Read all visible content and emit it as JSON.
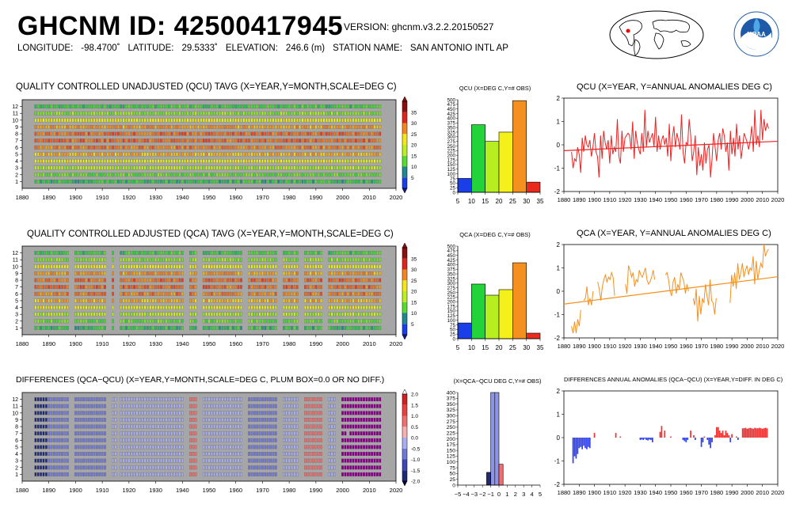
{
  "header": {
    "title": "GHCNM ID: 42500417945",
    "version": "VERSION: ghcnm.v3.2.2.20150527",
    "longitude_label": "LONGITUDE:",
    "longitude_value": "-98.4700˚",
    "latitude_label": "LATITUDE:",
    "latitude_value": "29.5333˚",
    "elevation_label": "ELEVATION:",
    "elevation_value": "246.6 (m)",
    "station_label": "STATION NAME:",
    "station_value": "SAN ANTONIO INTL AP"
  },
  "colors": {
    "raster_bg": "#a6a6a6",
    "qcu_line": "#ee2222",
    "qca_line": "#f5901e",
    "diff_pos": "#ee3333",
    "diff_neg": "#3344ee"
  },
  "panels": {
    "qcu_raster_title": "QUALITY CONTROLLED UNADJUSTED (QCU) TAVG (X=YEAR,Y=MONTH,SCALE=DEG C)",
    "qca_raster_title": "QUALITY CONTROLLED ADJUSTED (QCA) TAVG (X=YEAR,Y=MONTH,SCALE=DEG C)",
    "diff_raster_title": "DIFFERENCES (QCA−QCU) (X=YEAR,Y=MONTH,SCALE=DEG C, PLUM BOX=0.0 OR NO DIFF.)",
    "qcu_hist_title": "QCU (X=DEG C,Y=# OBS)",
    "qca_hist_title": "QCA (X=DEG C,Y=# OBS)",
    "diff_hist_title": "(X=QCA−QCU DEG C,Y=# OBS)",
    "qcu_anom_title": "QCU (X=YEAR, Y=ANNUAL ANOMALIES DEG C)",
    "qca_anom_title": "QCA (X=YEAR, Y=ANNUAL ANOMALIES DEG C)",
    "diff_anom_title": "DIFFERENCES ANNUAL ANOMALIES (QCA−QCU) (X=YEAR,Y=DIFF. IN DEG C)"
  },
  "chart_data": [
    {
      "id": "qcu_raster",
      "type": "heatmap",
      "xlim": [
        1880,
        2020
      ],
      "ylim": [
        0,
        13
      ],
      "x_ticks": [
        1880,
        1890,
        1900,
        1910,
        1920,
        1930,
        1940,
        1950,
        1960,
        1970,
        1980,
        1990,
        2000,
        2010,
        2020
      ],
      "y_ticks": [
        1,
        2,
        3,
        4,
        5,
        6,
        7,
        8,
        9,
        10,
        11,
        12
      ],
      "data_years": [
        1885,
        2014
      ],
      "gaps": [],
      "monthly_mean_degC": [
        10,
        13,
        17,
        21,
        25,
        28,
        29,
        29,
        26,
        21,
        15,
        11
      ],
      "colorbar_ticks": [
        5,
        10,
        15,
        20,
        25,
        30,
        35
      ]
    },
    {
      "id": "qcu_hist",
      "type": "bar",
      "categories": [
        "5-10",
        "10-15",
        "15-20",
        "20-25",
        "25-30",
        "30-35"
      ],
      "values": [
        75,
        365,
        275,
        325,
        495,
        55
      ],
      "xlim": [
        5,
        35
      ],
      "ylim": [
        0,
        500
      ],
      "x_ticks": [
        5,
        10,
        15,
        20,
        25,
        30,
        35
      ],
      "y_ticks": [
        0,
        25,
        50,
        75,
        100,
        125,
        150,
        175,
        200,
        225,
        250,
        275,
        300,
        325,
        350,
        375,
        400,
        425,
        450,
        475,
        500
      ],
      "bar_colors": [
        "#1a3ee8",
        "#22d43a",
        "#b6ee22",
        "#f3f01a",
        "#f5901e",
        "#ea2a1c"
      ]
    },
    {
      "id": "qcu_anom",
      "type": "line",
      "xlim": [
        1880,
        2020
      ],
      "ylim": [
        -2,
        2
      ],
      "x_ticks": [
        1880,
        1890,
        1900,
        1910,
        1920,
        1930,
        1940,
        1950,
        1960,
        1970,
        1980,
        1990,
        2000,
        2010,
        2020
      ],
      "y_ticks": [
        -2,
        -1,
        0,
        1,
        2
      ],
      "x_start": 1885,
      "values": [
        -0.3,
        -1.0,
        -0.6,
        -0.7,
        -0.1,
        -0.4,
        -1.2,
        0.3,
        -0.3,
        0.4,
        0.0,
        -0.1,
        0.2,
        -0.5,
        -0.1,
        0.5,
        -0.3,
        -0.5,
        -1.4,
        0.4,
        -0.6,
        0.6,
        0.1,
        -0.2,
        0.2,
        -0.8,
        0.4,
        -0.4,
        -0.1,
        -0.3,
        1.1,
        -0.5,
        -0.8,
        0.6,
        -0.3,
        0.3,
        0.4,
        0.5,
        0.4,
        -0.2,
        1.0,
        -0.6,
        0.6,
        0.1,
        -0.2,
        -0.4,
        0.5,
        -0.3,
        1.5,
        -0.1,
        0.6,
        0.1,
        0.3,
        0.5,
        -0.1,
        1.2,
        -0.3,
        0.4,
        -0.2,
        0.2,
        0.4,
        0.0,
        0.3,
        -0.5,
        0.9,
        -0.7,
        0.3,
        0.8,
        -0.1,
        0.5,
        0.2,
        -0.2,
        1.3,
        -0.3,
        -0.8,
        0.1,
        0.0,
        1.1,
        0.4,
        -0.7,
        -0.3,
        0.4,
        -1.3,
        -0.1,
        -0.9,
        -0.4,
        -1.1,
        0.1,
        -0.8,
        -0.2,
        0.0,
        -1.4,
        -0.6,
        0.5,
        -0.1,
        -0.7,
        0.2,
        0.5,
        -0.2,
        0.7,
        0.4,
        -0.3,
        0.1,
        -1.1,
        0.6,
        -0.4,
        0.3,
        -0.5,
        0.9,
        -0.2,
        0.4,
        -0.6,
        -0.1,
        0.5,
        0.3,
        0.1,
        -0.2,
        0.2,
        0.8,
        -0.3,
        1.5,
        0.0,
        0.4,
        -0.1,
        1.5,
        0.2,
        1.1,
        0.6,
        0.9,
        0.7
      ],
      "trend": [
        -0.25,
        0.15
      ]
    },
    {
      "id": "qca_raster",
      "type": "heatmap",
      "xlim": [
        1880,
        2020
      ],
      "ylim": [
        0,
        13
      ],
      "x_ticks": [
        1880,
        1890,
        1900,
        1910,
        1920,
        1930,
        1940,
        1950,
        1960,
        1970,
        1980,
        1990,
        2000,
        2010,
        2020
      ],
      "y_ticks": [
        1,
        2,
        3,
        4,
        5,
        6,
        7,
        8,
        9,
        10,
        11,
        12
      ],
      "data_years": [
        1885,
        2014
      ],
      "gaps": [
        [
          1898,
          1899
        ],
        [
          1912,
          1913
        ],
        [
          1915,
          1916
        ],
        [
          1941,
          1942
        ],
        [
          1946,
          1947
        ],
        [
          1963,
          1964
        ],
        [
          1976,
          1977
        ],
        [
          1984,
          1985
        ],
        [
          1993,
          1994
        ]
      ],
      "monthly_mean_degC": [
        10,
        13,
        17,
        21,
        25,
        28,
        29,
        29,
        26,
        21,
        15,
        11
      ],
      "colorbar_ticks": [
        5,
        10,
        15,
        20,
        25,
        30,
        35
      ]
    },
    {
      "id": "qca_hist",
      "type": "bar",
      "categories": [
        "5-10",
        "10-15",
        "15-20",
        "20-25",
        "25-30",
        "30-35"
      ],
      "values": [
        85,
        295,
        235,
        265,
        410,
        30
      ],
      "xlim": [
        5,
        35
      ],
      "ylim": [
        0,
        500
      ],
      "x_ticks": [
        5,
        10,
        15,
        20,
        25,
        30,
        35
      ],
      "y_ticks": [
        0,
        25,
        50,
        75,
        100,
        125,
        150,
        175,
        200,
        225,
        250,
        275,
        300,
        325,
        350,
        375,
        400,
        425,
        450,
        475,
        500
      ],
      "bar_colors": [
        "#1a3ee8",
        "#22d43a",
        "#b6ee22",
        "#f3f01a",
        "#f5901e",
        "#ea2a1c"
      ]
    },
    {
      "id": "qca_anom",
      "type": "line",
      "xlim": [
        1880,
        2020
      ],
      "ylim": [
        -2,
        2
      ],
      "x_ticks": [
        1880,
        1890,
        1900,
        1910,
        1920,
        1930,
        1940,
        1950,
        1960,
        1970,
        1980,
        1990,
        2000,
        2010,
        2020
      ],
      "y_ticks": [
        -2,
        -1,
        0,
        1,
        2
      ],
      "x_start": 1885,
      "values": [
        -1.5,
        -1.8,
        -1.3,
        -1.8,
        -1.2,
        -1.5,
        -0.8,
        null,
        -0.4,
        -0.3,
        0.2,
        -0.6,
        -0.3,
        -0.6,
        0.0,
        null,
        null,
        0.4,
        0.1,
        -0.4,
        0.2,
        0.5,
        0.7,
        0.4,
        0.6,
        0.5,
        0.8,
        0.6,
        -0.2,
        null,
        null,
        -0.3,
        null,
        null,
        null,
        0.3,
        -0.1,
        1.1,
        0.9,
        0.6,
        0.8,
        0.2,
        0.5,
        0.4,
        0.9,
        0.7,
        0.6,
        0.8,
        1.0,
        0.5,
        0.3,
        0.4,
        0.6,
        0.9,
        0.5,
        null,
        null,
        null,
        null,
        null,
        null,
        0.7,
        0.8,
        0.5,
        0.0,
        -0.2,
        0.4,
        0.6,
        -0.1,
        0.3,
        0.1,
        0.8,
        0.6,
        0.4,
        -0.1,
        0.3,
        0.0,
        null,
        null,
        -0.3,
        -0.6,
        0.1,
        -1.3,
        -0.2,
        -1.0,
        -0.3,
        -0.5,
        0.3,
        -0.2,
        -0.6,
        0.5,
        -0.4,
        -0.5,
        -1.0,
        -0.3,
        null,
        null,
        null,
        null,
        null,
        null,
        null,
        null,
        -0.5,
        0.7,
        0.2,
        0.8,
        0.1,
        1.2,
        0.5,
        0.8,
        1.2,
        0.6,
        0.9,
        1.1,
        0.7,
        1.0,
        0.9,
        1.5,
        0.3,
        1.3,
        0.5,
        0.9,
        1.2,
        1.0,
        2.0,
        1.5,
        1.7,
        1.8
      ],
      "trend": [
        -0.55,
        0.62
      ]
    },
    {
      "id": "diff_raster",
      "type": "heatmap",
      "xlim": [
        1880,
        2020
      ],
      "ylim": [
        0,
        13
      ],
      "x_ticks": [
        1880,
        1890,
        1900,
        1910,
        1920,
        1930,
        1940,
        1950,
        1960,
        1970,
        1980,
        1990,
        2000,
        2010,
        2020
      ],
      "y_ticks": [
        1,
        2,
        3,
        4,
        5,
        6,
        7,
        8,
        9,
        10,
        11,
        12
      ],
      "segments": [
        {
          "years": [
            1885,
            1889
          ],
          "diff": -1.0
        },
        {
          "years": [
            1890,
            1897
          ],
          "diff": -0.5
        },
        {
          "years": [
            1900,
            1911
          ],
          "diff": -0.4
        },
        {
          "years": [
            1914,
            1915
          ],
          "diff": -0.2
        },
        {
          "years": [
            1917,
            1940
          ],
          "diff": -0.1
        },
        {
          "years": [
            1943,
            1945
          ],
          "diff": 0.4
        },
        {
          "years": [
            1948,
            1962
          ],
          "diff": -0.2
        },
        {
          "years": [
            1965,
            1975
          ],
          "diff": -0.3
        },
        {
          "years": [
            1978,
            1983
          ],
          "diff": -0.1
        },
        {
          "years": [
            1986,
            1992
          ],
          "diff": 0.3
        },
        {
          "years": [
            1995,
            1997
          ],
          "diff": -0.2
        },
        {
          "years": [
            2000,
            2014
          ],
          "diff": 0.0
        }
      ],
      "colorbar_ticks": [
        -2.0,
        -1.5,
        -1.0,
        -0.5,
        0.0,
        0.5,
        1.0,
        1.5,
        2.0
      ]
    },
    {
      "id": "diff_hist",
      "type": "bar",
      "categories": [
        "-1.5 to -1",
        "-1 to -0.5",
        "-0.5 to 0",
        "0 to 0.5"
      ],
      "values": [
        55,
        400,
        400,
        90
      ],
      "xlim": [
        -5,
        5
      ],
      "ylim": [
        0,
        400
      ],
      "x_ticks": [
        -5,
        -4,
        -3,
        -2,
        -1,
        0,
        1,
        2,
        3,
        4,
        5
      ],
      "y_ticks": [
        0,
        25,
        50,
        75,
        100,
        125,
        150,
        175,
        200,
        225,
        250,
        275,
        300,
        325,
        350,
        375,
        400
      ],
      "bar_colors": [
        "#222a6a",
        "#8e94e4",
        "#8e94e4",
        "#f07070"
      ]
    },
    {
      "id": "diff_anom",
      "type": "bar",
      "xlim": [
        1880,
        2020
      ],
      "ylim": [
        -2,
        2
      ],
      "x_ticks": [
        1880,
        1890,
        1900,
        1910,
        1920,
        1930,
        1940,
        1950,
        1960,
        1970,
        1980,
        1990,
        2000,
        2010,
        2020
      ],
      "y_ticks": [
        -2,
        -1,
        0,
        1,
        2
      ],
      "points": [
        [
          1886,
          -1.1
        ],
        [
          1887,
          -0.8
        ],
        [
          1888,
          -0.9
        ],
        [
          1889,
          -0.7
        ],
        [
          1890,
          -0.45
        ],
        [
          1891,
          -0.4
        ],
        [
          1892,
          -0.5
        ],
        [
          1893,
          -0.35
        ],
        [
          1894,
          -0.45
        ],
        [
          1895,
          -0.5
        ],
        [
          1896,
          -0.4
        ],
        [
          1897,
          -0.45
        ],
        [
          1900,
          0.2
        ],
        [
          1914,
          0.2
        ],
        [
          1917,
          0.05
        ],
        [
          1930,
          -0.1
        ],
        [
          1931,
          -0.08
        ],
        [
          1932,
          -0.1
        ],
        [
          1933,
          -0.05
        ],
        [
          1934,
          -0.1
        ],
        [
          1935,
          -0.12
        ],
        [
          1936,
          -0.08
        ],
        [
          1937,
          -0.1
        ],
        [
          1938,
          -0.2
        ],
        [
          1943,
          0.25
        ],
        [
          1944,
          0.5
        ],
        [
          1946,
          0.3
        ],
        [
          1950,
          0.05
        ],
        [
          1958,
          -0.1
        ],
        [
          1959,
          -0.15
        ],
        [
          1960,
          -0.2
        ],
        [
          1961,
          -0.1
        ],
        [
          1963,
          0.3
        ],
        [
          1965,
          0.1
        ],
        [
          1966,
          -0.1
        ],
        [
          1970,
          -0.4
        ],
        [
          1971,
          -0.2
        ],
        [
          1972,
          0.05
        ],
        [
          1974,
          -0.1
        ],
        [
          1975,
          -0.3
        ],
        [
          1976,
          -0.45
        ],
        [
          1977,
          -0.2
        ],
        [
          1979,
          0.1
        ],
        [
          1980,
          0.45
        ],
        [
          1981,
          0.45
        ],
        [
          1982,
          0.3
        ],
        [
          1983,
          0.2
        ],
        [
          1984,
          0.3
        ],
        [
          1985,
          0.1
        ],
        [
          1986,
          0.3
        ],
        [
          1987,
          0.2
        ],
        [
          1988,
          0.1
        ],
        [
          1989,
          -0.2
        ],
        [
          1990,
          0.15
        ],
        [
          1993,
          0.05
        ],
        [
          1994,
          -0.1
        ],
        [
          1997,
          0.4
        ],
        [
          1998,
          0.4
        ],
        [
          1999,
          0.42
        ],
        [
          2000,
          0.38
        ],
        [
          2001,
          0.4
        ],
        [
          2002,
          0.42
        ],
        [
          2003,
          0.4
        ],
        [
          2004,
          0.38
        ],
        [
          2005,
          0.42
        ],
        [
          2006,
          0.4
        ],
        [
          2007,
          0.4
        ],
        [
          2008,
          0.42
        ],
        [
          2009,
          0.4
        ],
        [
          2010,
          0.38
        ],
        [
          2011,
          0.4
        ],
        [
          2012,
          0.42
        ],
        [
          2013,
          0.4
        ]
      ]
    }
  ]
}
